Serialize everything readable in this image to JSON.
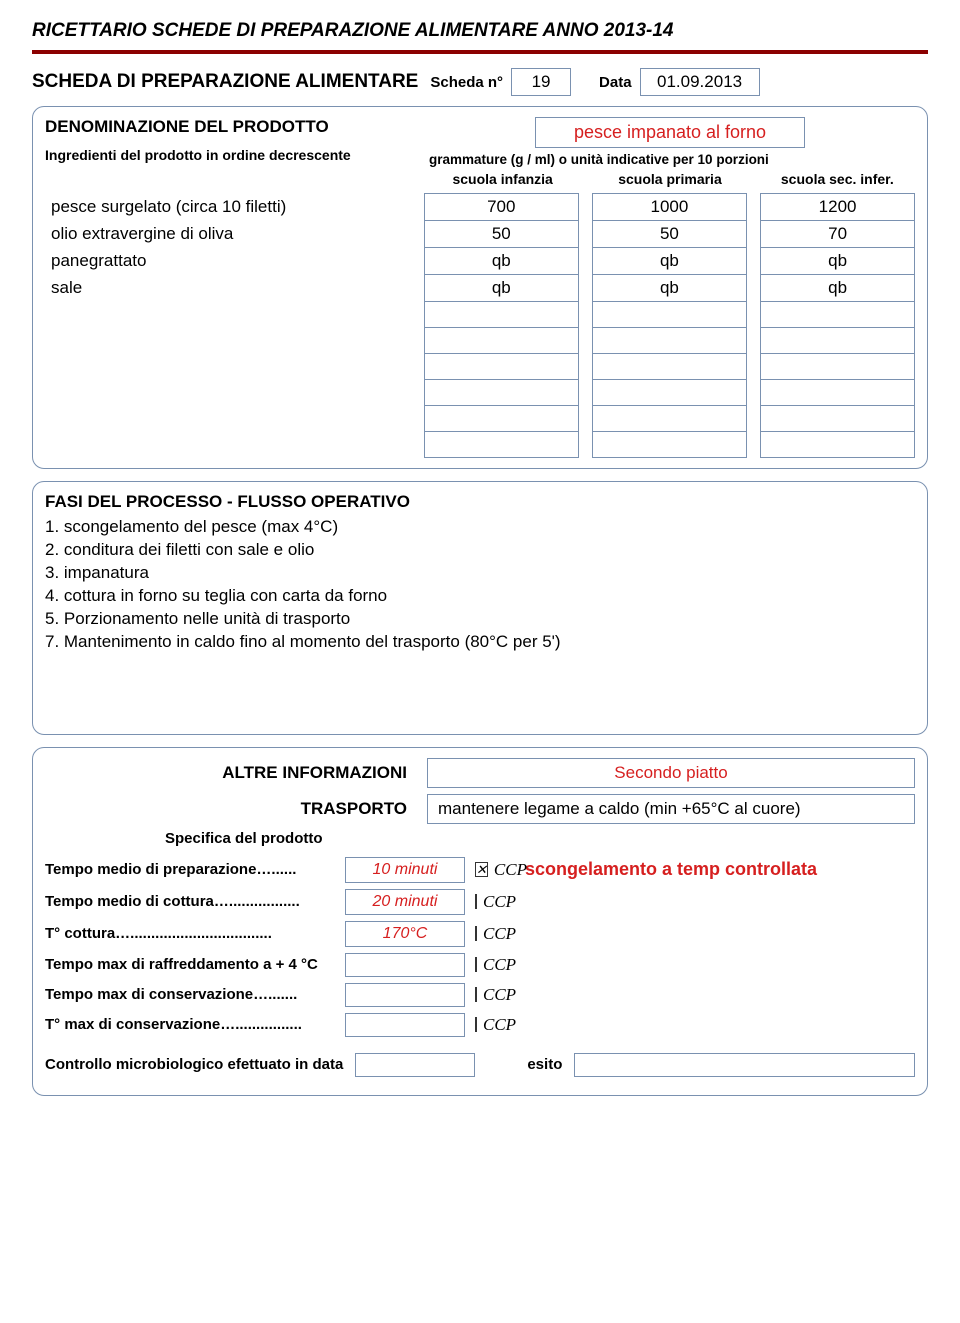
{
  "doc_title": "RICETTARIO SCHEDE DI PREPARAZIONE ALIMENTARE ANNO 2013-14",
  "colors": {
    "accent": "#8b0000",
    "border": "#7a91b0",
    "red": "#d61f1f"
  },
  "sheet": {
    "title": "SCHEDA DI PREPARAZIONE ALIMENTARE",
    "num_label": "Scheda n°",
    "num": "19",
    "date_label": "Data",
    "date": "01.09.2013"
  },
  "denom": {
    "title": "DENOMINAZIONE DEL PRODOTTO",
    "sub": "Ingredienti del prodotto in ordine decrescente",
    "product_name": "pesce impanato al forno",
    "gramm_line": "grammature (g / ml) o unità indicative per 10 porzioni",
    "heads": [
      "scuola infanzia",
      "scuola primaria",
      "scuola sec. infer."
    ]
  },
  "ingredients": [
    {
      "name": "pesce surgelato (circa 10 filetti)",
      "v": [
        "700",
        "1000",
        "1200"
      ]
    },
    {
      "name": "olio extravergine di oliva",
      "v": [
        "50",
        "50",
        "70"
      ]
    },
    {
      "name": "panegrattato",
      "v": [
        "qb",
        "qb",
        "qb"
      ]
    },
    {
      "name": "sale",
      "v": [
        "qb",
        "qb",
        "qb"
      ]
    },
    {
      "name": "",
      "v": [
        "",
        "",
        ""
      ]
    },
    {
      "name": "",
      "v": [
        "",
        "",
        ""
      ]
    },
    {
      "name": "",
      "v": [
        "",
        "",
        ""
      ]
    },
    {
      "name": "",
      "v": [
        "",
        "",
        ""
      ]
    },
    {
      "name": "",
      "v": [
        "",
        "",
        ""
      ]
    },
    {
      "name": "",
      "v": [
        "",
        "",
        ""
      ]
    }
  ],
  "phases": {
    "title": "FASI DEL PROCESSO - FLUSSO OPERATIVO",
    "lines": [
      "1. scongelamento del pesce (max 4°C)",
      "2. conditura dei filetti con sale e olio",
      "3. impanatura",
      "4. cottura in forno su teglia con carta da forno",
      "5. Porzionamento nelle unità di trasporto",
      "7. Mantenimento  in caldo fino al momento del trasporto (80°C per 5')"
    ]
  },
  "info": {
    "other_label": "ALTRE INFORMAZIONI",
    "other_value": "Secondo piatto",
    "transport_label": "TRASPORTO",
    "transport_value": "mantenere legame a caldo (min +65°C al cuore)",
    "spec_label": "Specifica del prodotto"
  },
  "bottom": [
    {
      "label": "Tempo medio di preparazione…......",
      "val": "10 minuti",
      "checked": true
    },
    {
      "label": "Tempo medio di cottura….................",
      "val": "20 minuti",
      "checked": false
    },
    {
      "label": "T° cottura…..................................",
      "val": "170°C",
      "checked": false
    },
    {
      "label": "Tempo max di raffreddamento a + 4 °C",
      "val": "",
      "checked": false
    },
    {
      "label": "Tempo max di conservazione….......",
      "val": "",
      "checked": false
    },
    {
      "label": "T° max di conservazione…................",
      "val": "",
      "checked": false
    }
  ],
  "ccp_label": "CCP",
  "ccp_note": "scongelamento a temp controllata",
  "control": {
    "label": "Controllo microbiologico efettuato in data",
    "esito_label": "esito"
  }
}
